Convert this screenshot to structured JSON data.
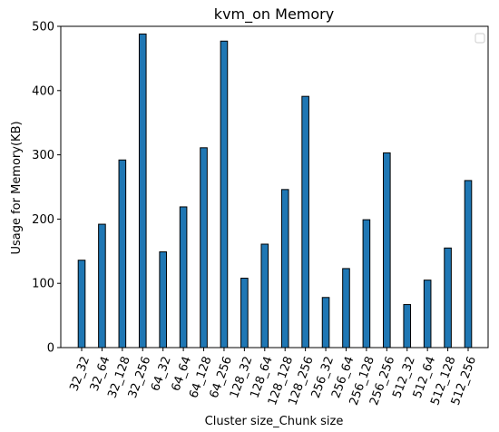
{
  "chart_data": {
    "type": "bar",
    "title": "kvm_on Memory",
    "xlabel": "Cluster size_Chunk size",
    "ylabel": "Usage for Memory(KB)",
    "ylim": [
      0,
      500
    ],
    "yticks": [
      0,
      100,
      200,
      300,
      400,
      500
    ],
    "grid": false,
    "legend": {
      "placement": "top-right",
      "entries": []
    },
    "bar_color": "#1f77b4",
    "bar_edge_color": "#000000",
    "categories": [
      "32_32",
      "32_64",
      "32_128",
      "32_256",
      "64_32",
      "64_64",
      "64_128",
      "64_256",
      "128_32",
      "128_64",
      "128_128",
      "128_256",
      "256_32",
      "256_64",
      "256_128",
      "256_256",
      "512_32",
      "512_64",
      "512_128",
      "512_256"
    ],
    "values": [
      136,
      192,
      292,
      488,
      149,
      219,
      311,
      477,
      108,
      161,
      246,
      391,
      78,
      123,
      199,
      303,
      67,
      105,
      155,
      260
    ]
  }
}
